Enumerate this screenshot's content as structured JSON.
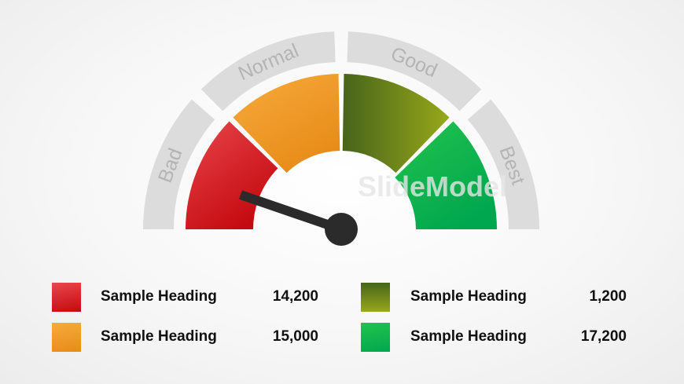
{
  "gauge": {
    "bands": [
      {
        "label": "Bad",
        "color_from": "#e8464b",
        "color_to": "#c40a10"
      },
      {
        "label": "Normal",
        "color_from": "#f6ab3d",
        "color_to": "#e88b18"
      },
      {
        "label": "Good",
        "color_from": "#47641b",
        "color_to": "#97a81a"
      },
      {
        "label": "Best",
        "color_from": "#22c34c",
        "color_to": "#01a74f"
      }
    ],
    "needle_color": "#2b2b2b",
    "band_label_color": "#b4b4b4",
    "track_color": "#dcdcdc",
    "watermark": "SlideModel"
  },
  "legend": [
    {
      "heading": "Sample Heading",
      "value": "14,200",
      "color_from": "#e8464b",
      "color_to": "#c40a10"
    },
    {
      "heading": "Sample Heading",
      "value": "15,000",
      "color_from": "#f6ab3d",
      "color_to": "#e88b18"
    },
    {
      "heading": "Sample Heading",
      "value": "1,200",
      "color_from": "#47641b",
      "color_to": "#97a81a"
    },
    {
      "heading": "Sample Heading",
      "value": "17,200",
      "color_from": "#22c34c",
      "color_to": "#01a74f"
    }
  ]
}
